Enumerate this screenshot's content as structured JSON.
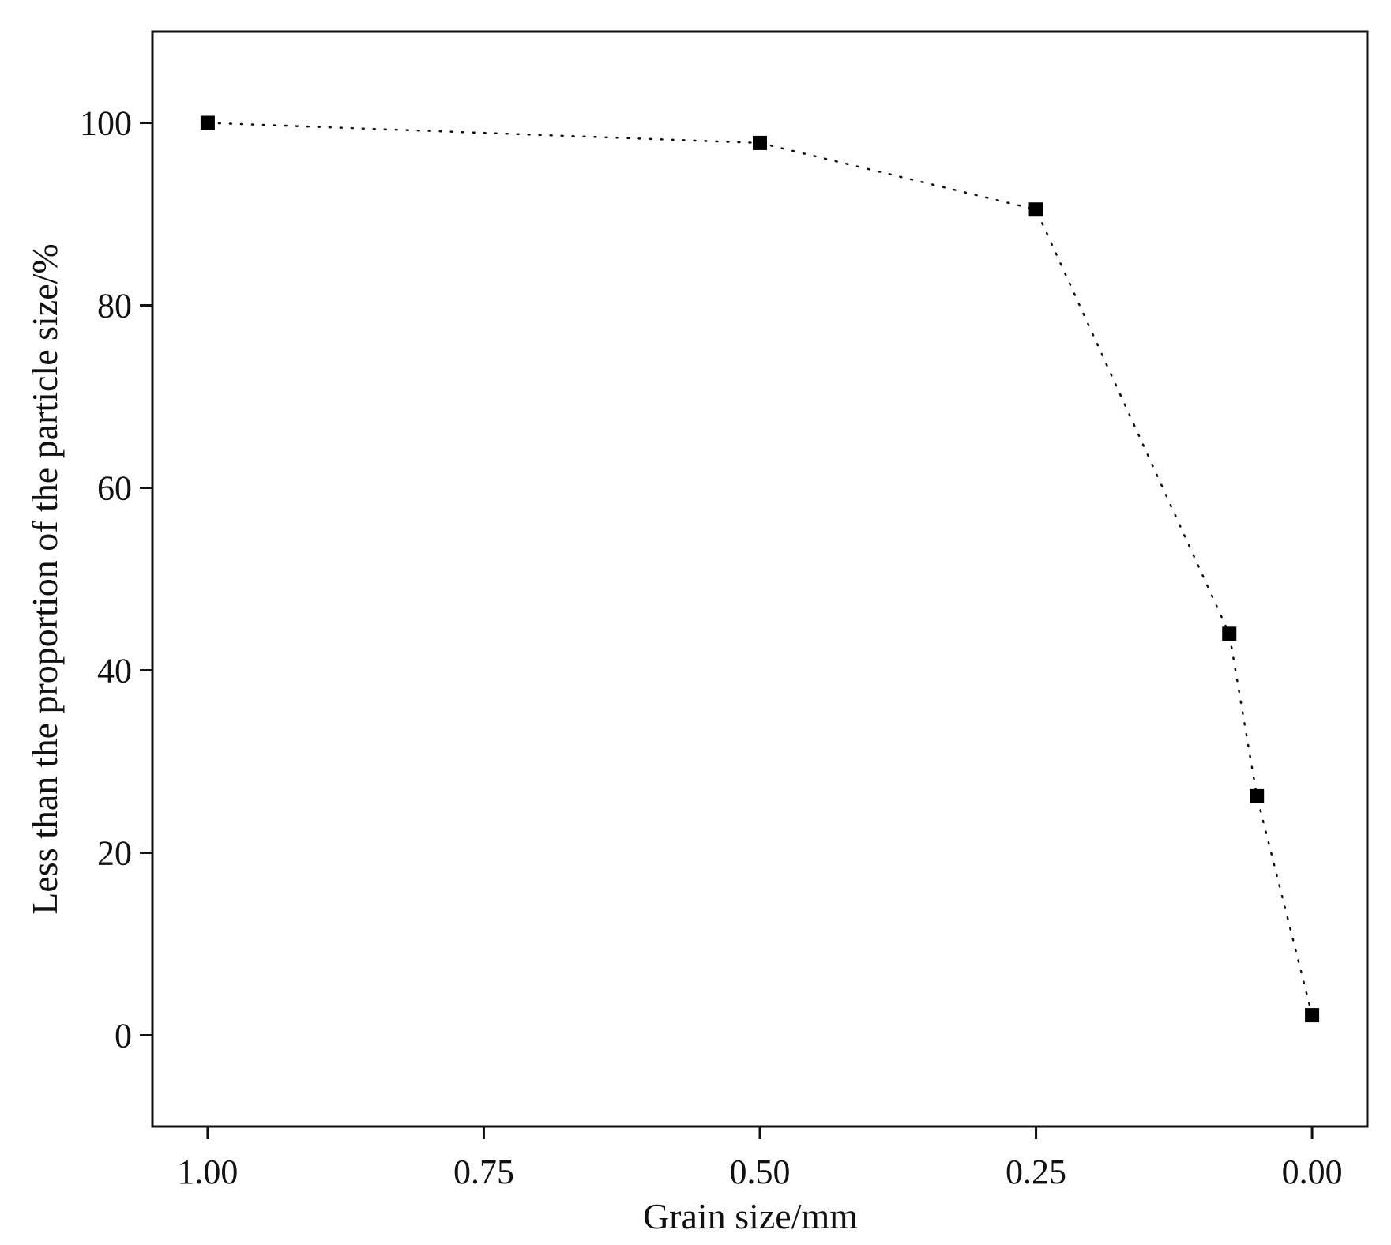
{
  "chart_data": {
    "type": "scatter",
    "title": "",
    "xlabel": "Grain size/mm",
    "ylabel": "Less than the proportion of the particle size/%",
    "xlim": [
      1.05,
      -0.05
    ],
    "ylim": [
      -10,
      110
    ],
    "x_reversed": true,
    "grid": false,
    "legend": "none",
    "line_style": "dotted",
    "marker": "filled-square",
    "color": "#000000",
    "xticks": [
      1.0,
      0.75,
      0.5,
      0.25,
      0.0
    ],
    "xtick_labels": [
      "1.00",
      "0.75",
      "0.50",
      "0.25",
      "0.00"
    ],
    "yticks": [
      0,
      20,
      40,
      60,
      80,
      100
    ],
    "ytick_labels": [
      "0",
      "20",
      "40",
      "60",
      "80",
      "100"
    ],
    "series": [
      {
        "x": [
          1.0,
          0.5,
          0.25,
          0.075,
          0.05,
          0.0
        ],
        "y": [
          100,
          97.8,
          90.5,
          44,
          26.2,
          2.2
        ]
      }
    ]
  }
}
